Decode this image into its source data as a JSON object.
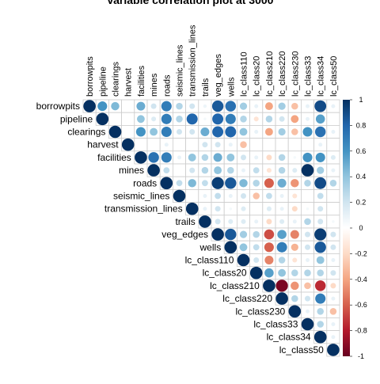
{
  "chart_data": {
    "type": "heatmap",
    "title": "Variable correlation plot at 3000",
    "variables": [
      "borrowpits",
      "pipeline",
      "clearings",
      "harvest",
      "facilities",
      "mines",
      "roads",
      "seismic_lines",
      "transmission_lines",
      "trails",
      "veg_edges",
      "wells",
      "lc_class110",
      "lc_class20",
      "lc_class210",
      "lc_class220",
      "lc_class230",
      "lc_class33",
      "lc_class34",
      "lc_class50"
    ],
    "layout": "upper-triangle",
    "glyph": "circle",
    "colorbar": {
      "range": [
        -1,
        1
      ],
      "ticks": [
        1,
        0.8,
        0.6,
        0.4,
        0.2,
        0,
        -0.2,
        -0.4,
        -0.6,
        -0.8,
        -1
      ],
      "tick_labels": [
        "1",
        "0.8",
        "0.6",
        "0.4",
        "0.2",
        "0",
        "-0.2",
        "-0.4",
        "-0.6",
        "-0.8",
        "-1"
      ],
      "colors": [
        "#67001F",
        "#B2182B",
        "#D6604D",
        "#F4A582",
        "#FDDBC7",
        "#FFFFFF",
        "#D1E5F0",
        "#92C5DE",
        "#4393C3",
        "#2166AC",
        "#053061"
      ]
    },
    "grid": true,
    "legend_position": "right",
    "matrix": [
      [
        1,
        0.6,
        0.45,
        null,
        0.5,
        0.2,
        0.7,
        0.3,
        0.2,
        0.08,
        0.85,
        0.75,
        0.35,
        0.1,
        -0.4,
        0.35,
        -0.3,
        0.1,
        0.9,
        0.1
      ],
      [
        null,
        1,
        null,
        null,
        0.4,
        0.15,
        0.7,
        0.3,
        0.8,
        0.05,
        0.8,
        0.7,
        0.3,
        -0.15,
        0.3,
        0.2,
        -0.4,
        0.1,
        0.55,
        null
      ],
      [
        null,
        null,
        1,
        null,
        0.6,
        0.4,
        0.7,
        0.2,
        0.2,
        0.5,
        0.8,
        0.8,
        0.4,
        0.1,
        -0.4,
        0.35,
        -0.3,
        0.6,
        0.75,
        0.1
      ],
      [
        null,
        null,
        null,
        1,
        null,
        null,
        0.1,
        null,
        null,
        0.2,
        0.2,
        0.1,
        -0.3,
        null,
        null,
        null,
        null,
        null,
        0.1,
        null
      ],
      [
        null,
        null,
        null,
        null,
        1,
        0.75,
        0.7,
        0.1,
        0.4,
        0.3,
        0.5,
        0.4,
        0.2,
        0.1,
        -0.2,
        0.3,
        0.05,
        0.6,
        0.6,
        0.15
      ],
      [
        null,
        null,
        null,
        null,
        null,
        1,
        0.25,
        null,
        0.2,
        0.3,
        0.4,
        0.3,
        0.1,
        0.25,
        -0.15,
        0.3,
        0.15,
        1,
        0.35,
        0.1
      ],
      [
        null,
        null,
        null,
        null,
        null,
        null,
        1,
        0.25,
        0.45,
        0.25,
        0.95,
        0.85,
        0.45,
        0.3,
        -0.6,
        0.5,
        -0.45,
        0.3,
        0.9,
        0.3
      ],
      [
        null,
        null,
        null,
        null,
        null,
        null,
        null,
        1,
        null,
        0.1,
        0.25,
        0.1,
        0.2,
        -0.3,
        0.25,
        0.1,
        -0.15,
        null,
        0.25,
        null
      ],
      [
        null,
        null,
        null,
        null,
        null,
        null,
        null,
        null,
        1,
        0.1,
        0.2,
        0.05,
        0.15,
        null,
        0.15,
        0.1,
        -0.2,
        0.05,
        0.2,
        null
      ],
      [
        null,
        null,
        null,
        null,
        null,
        null,
        null,
        null,
        null,
        1,
        0.2,
        0.15,
        0.15,
        0.1,
        -0.2,
        0.15,
        0.1,
        0.3,
        0.2,
        0.05
      ],
      [
        null,
        null,
        null,
        null,
        null,
        null,
        null,
        null,
        null,
        null,
        1,
        0.85,
        0.35,
        0.3,
        -0.65,
        0.55,
        -0.5,
        0.2,
        0.95,
        0.2
      ],
      [
        null,
        null,
        null,
        null,
        null,
        null,
        null,
        null,
        null,
        null,
        null,
        1,
        0.4,
        0.25,
        -0.6,
        0.7,
        -0.35,
        0.2,
        0.85,
        0.2
      ],
      [
        null,
        null,
        null,
        null,
        null,
        null,
        null,
        null,
        null,
        null,
        null,
        null,
        1,
        0.2,
        -0.5,
        0.3,
        -0.15,
        0.1,
        0.4,
        0.1
      ],
      [
        null,
        null,
        null,
        null,
        null,
        null,
        null,
        null,
        null,
        null,
        null,
        null,
        null,
        1,
        0.55,
        0.4,
        0.3,
        0.3,
        0.3,
        0.2
      ],
      [
        null,
        null,
        null,
        null,
        null,
        null,
        null,
        null,
        null,
        null,
        null,
        null,
        null,
        null,
        1,
        -0.95,
        -0.45,
        -0.3,
        -0.75,
        -0.2
      ],
      [
        null,
        null,
        null,
        null,
        null,
        null,
        null,
        null,
        null,
        null,
        null,
        null,
        null,
        null,
        null,
        1,
        0.3,
        0.2,
        0.7,
        0.1
      ],
      [
        null,
        null,
        null,
        null,
        null,
        null,
        null,
        null,
        null,
        null,
        null,
        null,
        null,
        null,
        null,
        null,
        1,
        0.1,
        0.3,
        -0.3
      ],
      [
        null,
        null,
        null,
        null,
        null,
        null,
        null,
        null,
        null,
        null,
        null,
        null,
        null,
        null,
        null,
        null,
        null,
        1,
        0.3,
        0.1
      ],
      [
        null,
        null,
        null,
        null,
        null,
        null,
        null,
        null,
        null,
        null,
        null,
        null,
        null,
        null,
        null,
        null,
        null,
        null,
        1,
        0.1
      ],
      [
        null,
        null,
        null,
        null,
        null,
        null,
        null,
        null,
        null,
        null,
        null,
        null,
        null,
        null,
        null,
        null,
        null,
        null,
        null,
        1
      ]
    ]
  }
}
